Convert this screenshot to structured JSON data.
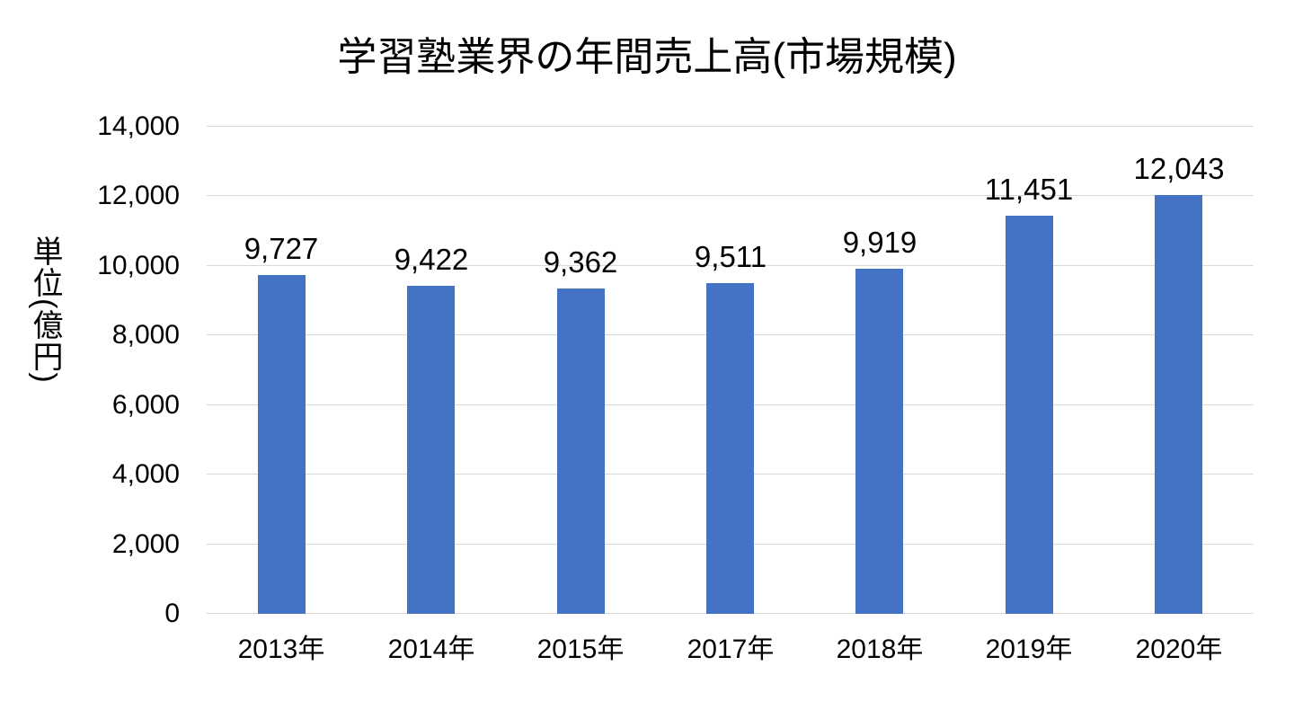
{
  "chart_data": {
    "type": "bar",
    "title": "学習塾業界の年間売上高(市場規模)",
    "ylabel": "単位(億円)",
    "xlabel": "",
    "categories": [
      "2013年",
      "2014年",
      "2015年",
      "2017年",
      "2018年",
      "2019年",
      "2020年"
    ],
    "values": [
      9727,
      9422,
      9362,
      9511,
      9919,
      11451,
      12043
    ],
    "value_labels": [
      "9,727",
      "9,422",
      "9,362",
      "9,511",
      "9,919",
      "11,451",
      "12,043"
    ],
    "ylim": [
      0,
      14000
    ],
    "ytick_step": 2000,
    "ytick_labels": [
      "0",
      "2,000",
      "4,000",
      "6,000",
      "8,000",
      "10,000",
      "12,000",
      "14,000"
    ],
    "grid": true,
    "legend": "none",
    "colors": {
      "bar": "#4472C4",
      "gridline": "#D9D9D9",
      "text": "#000000",
      "background": "#FFFFFF"
    }
  }
}
